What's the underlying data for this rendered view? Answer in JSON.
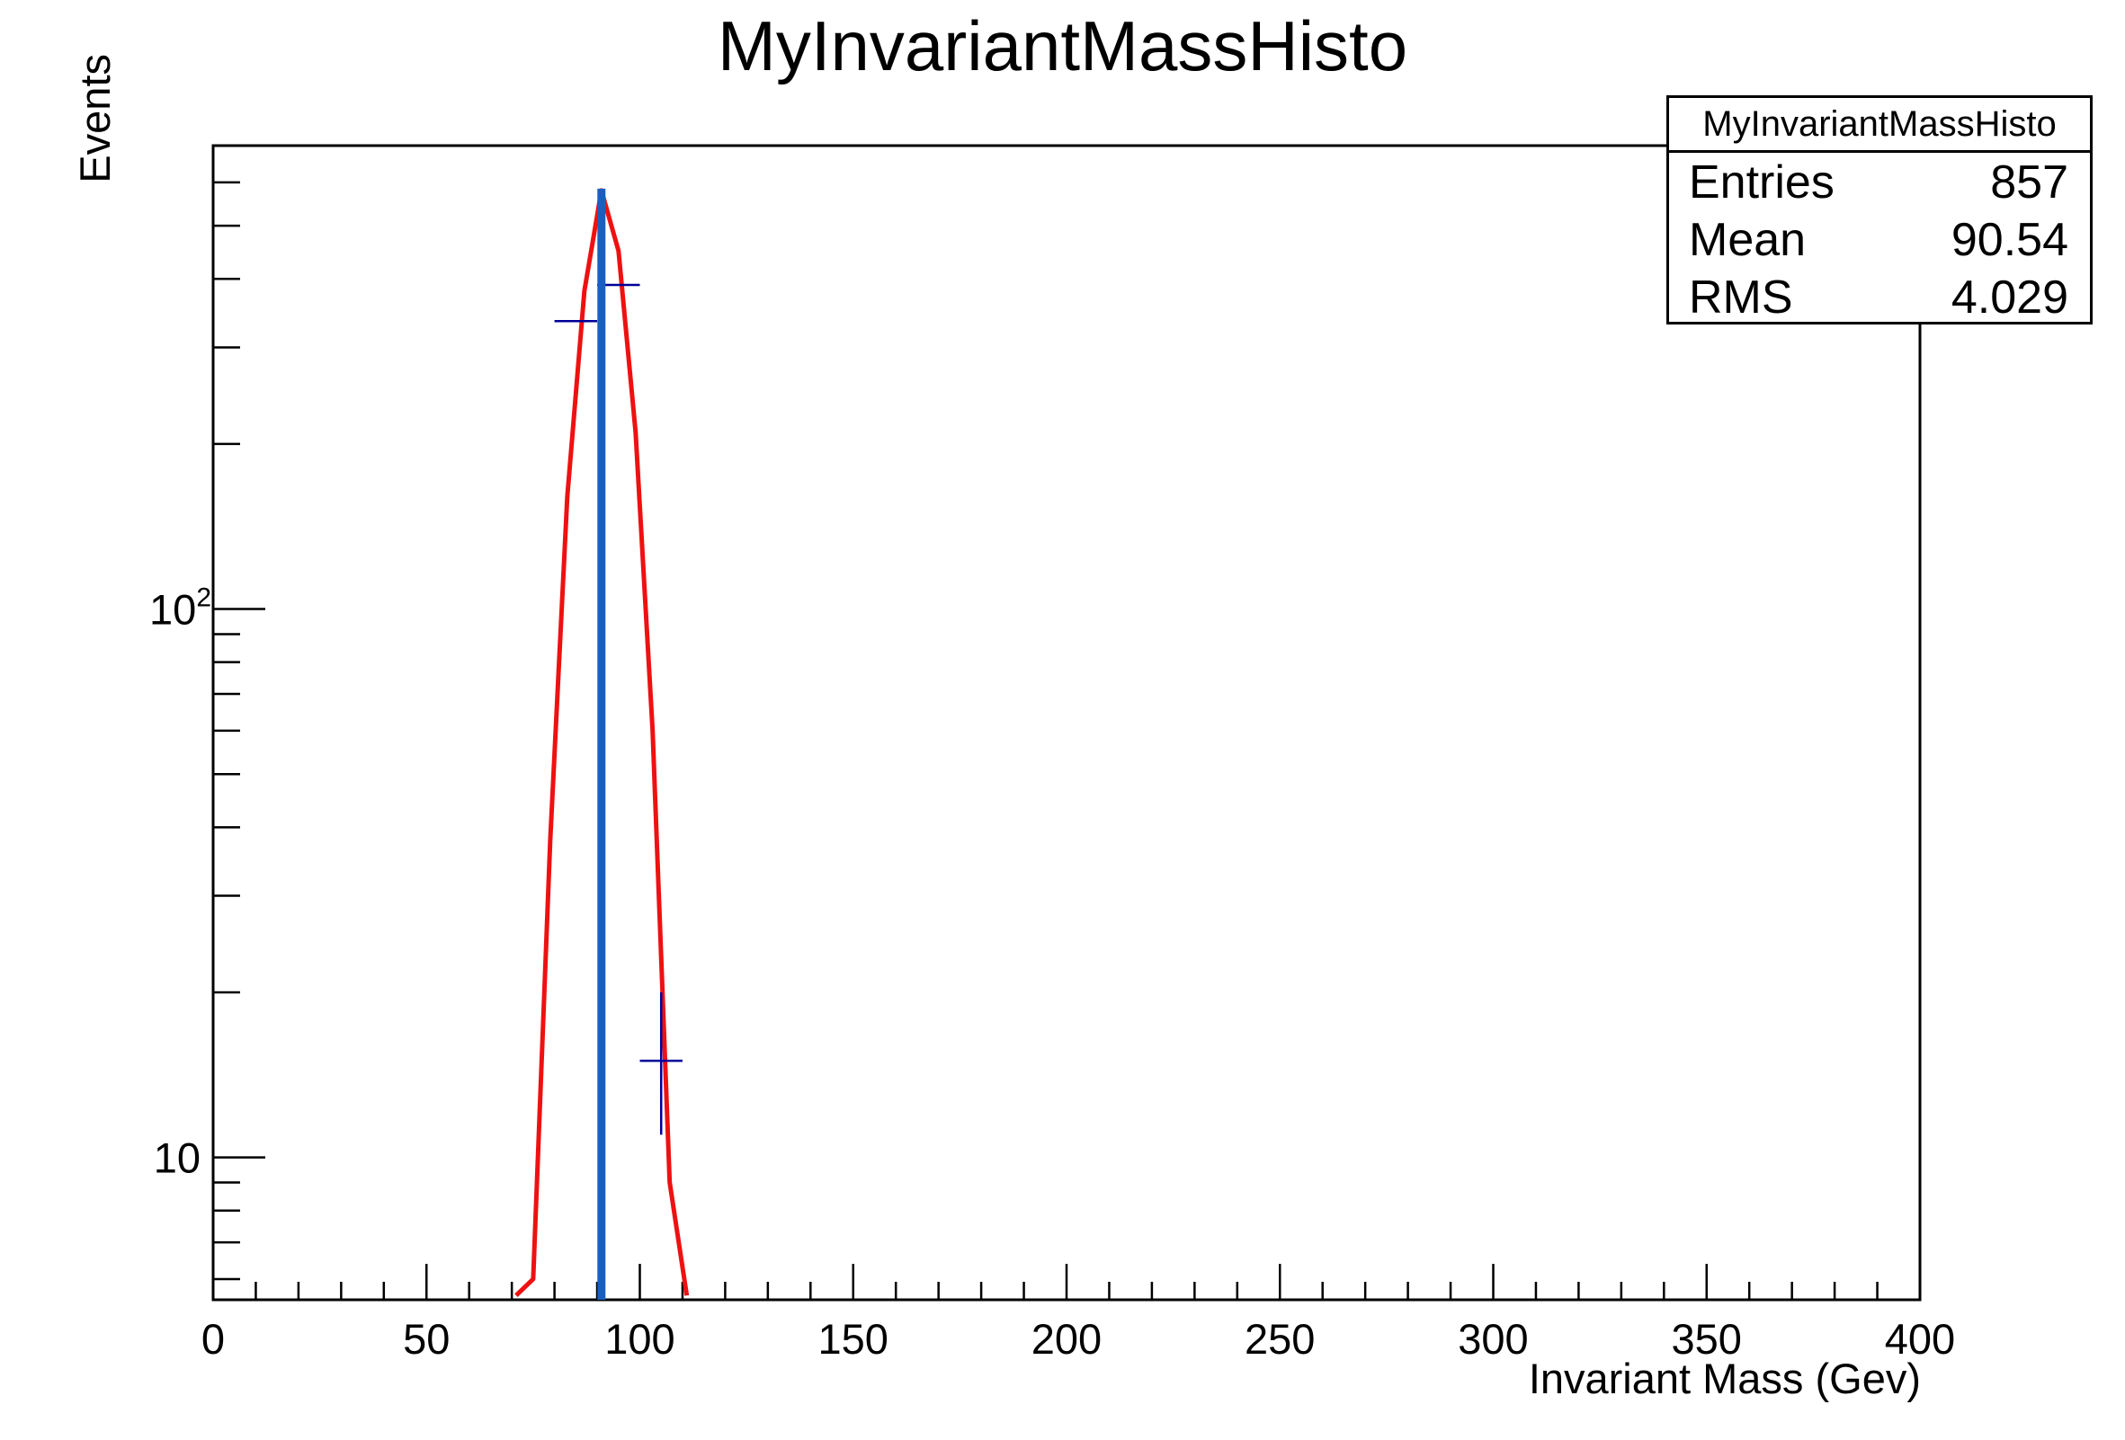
{
  "chart_data": {
    "type": "histogram",
    "title": "MyInvariantMassHisto",
    "xlabel": "Invariant Mass (Gev)",
    "ylabel": "Events",
    "xlim": [
      0,
      400
    ],
    "ylim": [
      5.5,
      700
    ],
    "yscale": "log",
    "x_ticks": [
      0,
      50,
      100,
      150,
      200,
      250,
      300,
      350,
      400
    ],
    "y_ticks": [
      {
        "value": 10,
        "label": "10"
      },
      {
        "value": 100,
        "label": "10",
        "exponent": "2"
      }
    ],
    "histogram_points": [
      {
        "x": 85,
        "x_err": 5,
        "y": 335,
        "y_err_low": 0,
        "y_err_high": 0
      },
      {
        "x": 95,
        "x_err": 5,
        "y": 390,
        "y_err_low": 0,
        "y_err_high": 0
      },
      {
        "x": 105,
        "x_err": 5,
        "y": 15,
        "y_err_low": 4,
        "y_err_high": 5
      }
    ],
    "fit_curve": {
      "color": "#ee1111",
      "x": [
        71,
        75,
        79,
        83,
        87,
        91,
        95,
        99,
        103,
        107,
        111
      ],
      "y": [
        5.6,
        6,
        38,
        160,
        380,
        580,
        450,
        210,
        60,
        9,
        5.6
      ]
    },
    "marker_line": {
      "x": 91,
      "color": "#1a5fc0"
    },
    "stats_box": {
      "title": "MyInvariantMassHisto",
      "rows": [
        {
          "label": "Entries",
          "value": "857"
        },
        {
          "label": "Mean",
          "value": "90.54"
        },
        {
          "label": "RMS",
          "value": "4.029"
        }
      ]
    }
  }
}
